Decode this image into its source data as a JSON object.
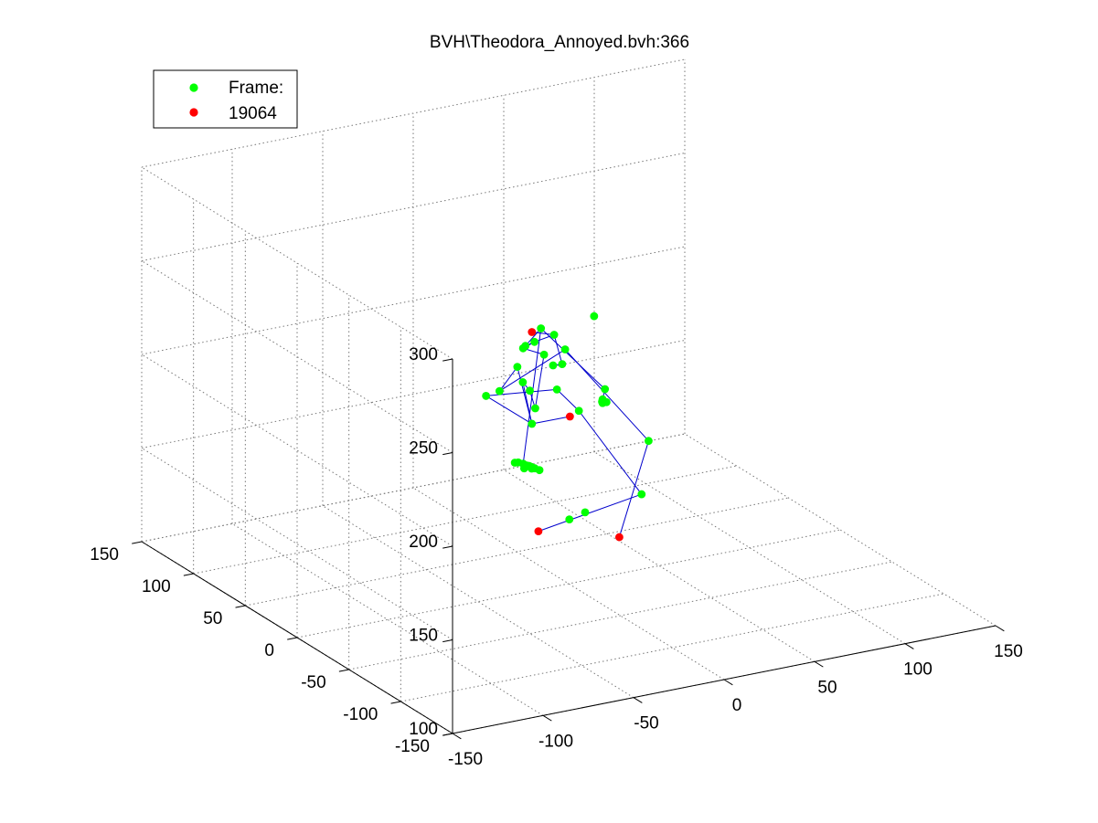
{
  "window": {
    "title": "BVH\\Theodora_Annoyed.bvh:366"
  },
  "legend": {
    "entries": [
      {
        "label": "Frame:",
        "color": "#00ff00"
      },
      {
        "label": "19064",
        "color": "#ff0000"
      }
    ]
  },
  "colors": {
    "joint": "#00ff00",
    "end_joint": "#ff0000",
    "bone": "#0000cc",
    "grid": "#777777",
    "axis": "#000000"
  },
  "chart_data": {
    "type": "scatter",
    "subtype": "3d-skeleton",
    "title": "BVH\\Theodora_Annoyed.bvh:366",
    "xlim": [
      -150,
      150
    ],
    "ylim": [
      -150,
      150
    ],
    "zlim": [
      100,
      300
    ],
    "xticks": [
      "-150",
      "-100",
      "-50",
      "0",
      "50",
      "100",
      "150"
    ],
    "yticks": [
      "-150",
      "-100",
      "-50",
      "0",
      "50",
      "100",
      "150"
    ],
    "zticks": [
      "100",
      "150",
      "200",
      "250",
      "300"
    ],
    "grid": true,
    "legend_placement": "top-left",
    "series": [
      {
        "name": "Frame:",
        "color": "#00ff00",
        "points": [
          [
            -6,
            25,
            178
          ],
          [
            -7,
            32,
            198
          ],
          [
            -6,
            27,
            195
          ],
          [
            -3,
            27,
            185
          ],
          [
            -1,
            22,
            215
          ],
          [
            -8,
            30,
            217
          ],
          [
            -4,
            26,
            221
          ],
          [
            -13,
            19,
            223
          ],
          [
            4,
            21,
            225
          ],
          [
            -1,
            25,
            228
          ],
          [
            -4,
            -42,
            219
          ],
          [
            -3,
            -38,
            212
          ],
          [
            -1,
            -34,
            209
          ],
          [
            -3,
            -38,
            210
          ],
          [
            -2,
            -40,
            211
          ],
          [
            9,
            22,
            208
          ],
          [
            12,
            36,
            202
          ],
          [
            -24,
            2,
            168
          ],
          [
            -28,
            3,
            169
          ],
          [
            -25,
            -3,
            169
          ],
          [
            -23,
            -2,
            168
          ],
          [
            -21,
            -4,
            167
          ],
          [
            -19,
            -5,
            166
          ],
          [
            -24,
            -6,
            169
          ],
          [
            -25,
            -8,
            169
          ],
          [
            -28,
            -6,
            169
          ],
          [
            -29,
            -2,
            171
          ],
          [
            10,
            67,
            191
          ],
          [
            -5,
            58,
            184
          ],
          [
            -5,
            71,
            177
          ],
          [
            29,
            62,
            177
          ],
          [
            57,
            103,
            179
          ],
          [
            44,
            67,
            161
          ],
          [
            35,
            -16,
            175
          ],
          [
            34,
            -11,
            145
          ],
          [
            21,
            36,
            118
          ],
          [
            40,
            54,
            112
          ],
          [
            65,
            89,
            200
          ]
        ]
      },
      {
        "name": "19064",
        "color": "#ff0000",
        "points": [
          [
            11,
            18,
            181
          ],
          [
            -6,
            25,
            227
          ],
          [
            40,
            21,
            110
          ],
          [
            -19,
            -4,
            133
          ]
        ]
      }
    ],
    "bones": [
      [
        0,
        1
      ],
      [
        1,
        2
      ],
      [
        2,
        3
      ],
      [
        3,
        4
      ],
      [
        4,
        5
      ],
      [
        5,
        6
      ],
      [
        6,
        7
      ],
      [
        6,
        8
      ],
      [
        7,
        9
      ],
      [
        9,
        10
      ],
      [
        10,
        11
      ],
      [
        11,
        12
      ],
      [
        12,
        13
      ],
      [
        13,
        14
      ],
      [
        9,
        17
      ],
      [
        17,
        18
      ],
      [
        18,
        19
      ],
      [
        19,
        20
      ],
      [
        20,
        21
      ],
      [
        21,
        22
      ],
      [
        22,
        23
      ],
      [
        23,
        24
      ],
      [
        24,
        25
      ],
      [
        25,
        26
      ],
      [
        8,
        15
      ],
      [
        15,
        16
      ],
      [
        0,
        27
      ],
      [
        27,
        28
      ],
      [
        0,
        29
      ],
      [
        29,
        30
      ],
      [
        28,
        31
      ],
      [
        30,
        32
      ],
      [
        31,
        33
      ],
      [
        32,
        34
      ]
    ]
  }
}
